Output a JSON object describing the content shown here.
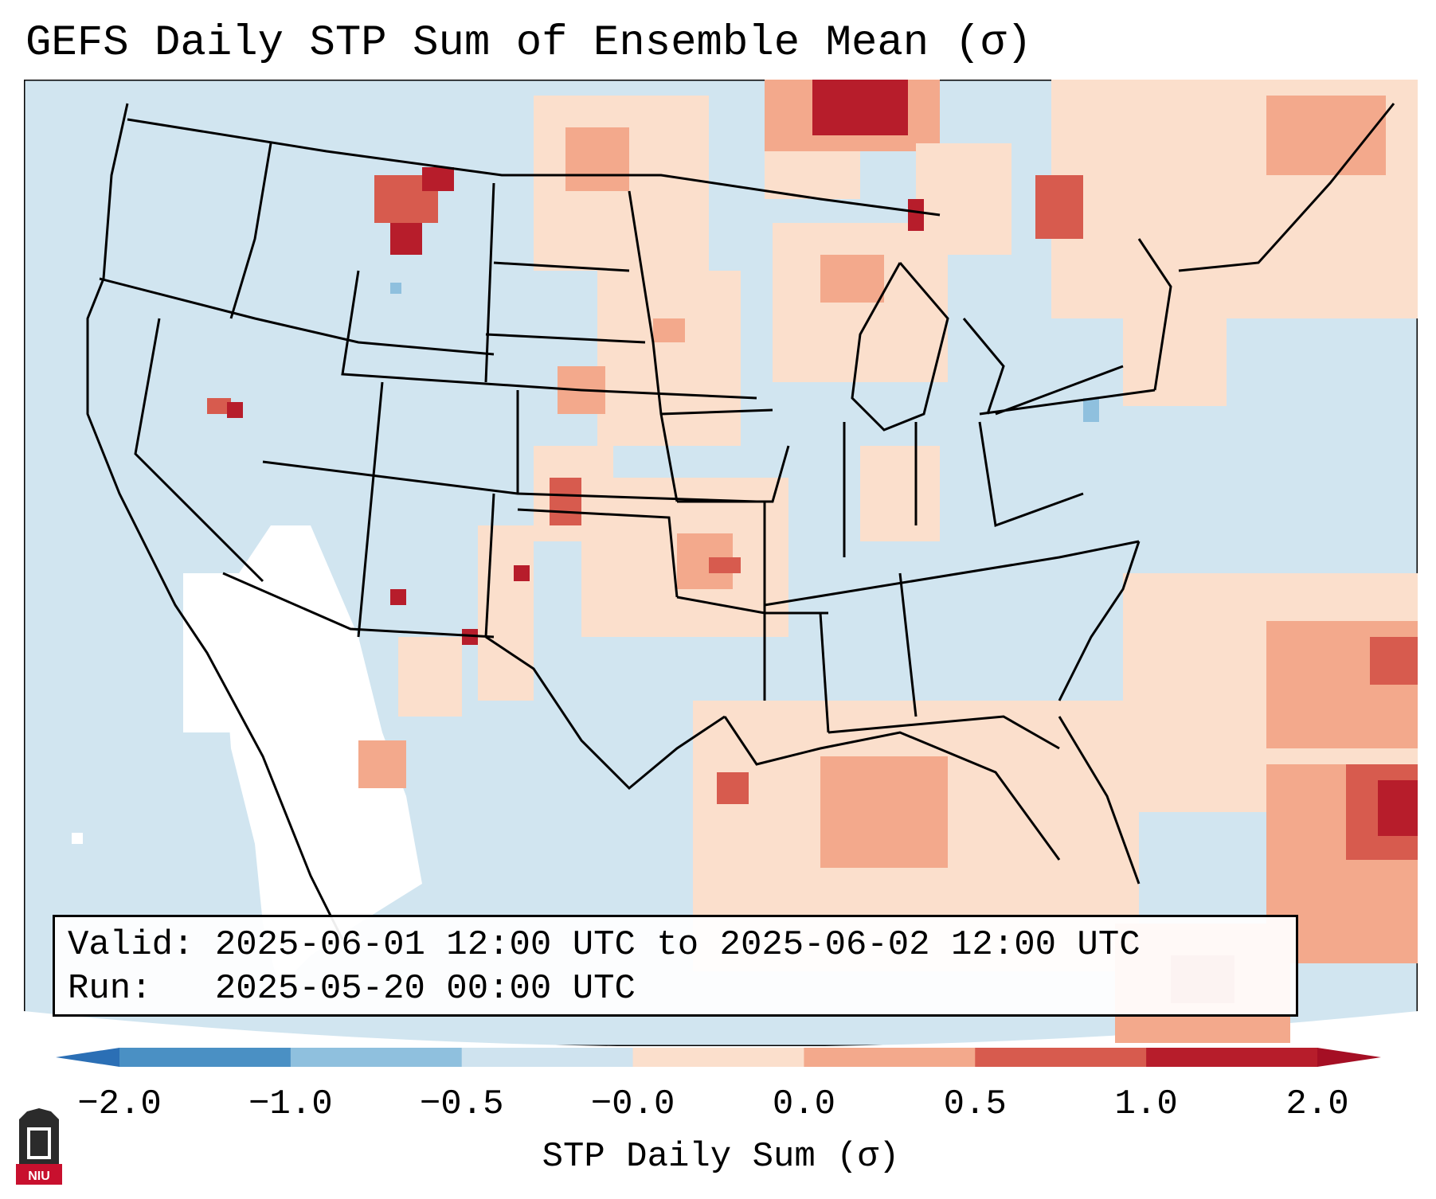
{
  "title": "GEFS Daily STP Sum of Ensemble Mean (σ)",
  "info": {
    "valid_label": "Valid:",
    "valid_value": "2025-06-01 12:00 UTC to 2025-06-02 12:00 UTC",
    "run_label": "Run:",
    "run_value": "2025-05-20 00:00 UTC"
  },
  "colorbar": {
    "title": "STP Daily Sum (σ)",
    "ticks": [
      "−2.0",
      "−1.0",
      "−0.5",
      "−0.0",
      "0.0",
      "0.5",
      "1.0",
      "2.0"
    ],
    "colors": [
      "#4a90c4",
      "#8fc0de",
      "#cfe3ef",
      "#fbdfcc",
      "#f3a98c",
      "#d75b4e",
      "#b71d2b"
    ],
    "extend_low_color": "#2b6fb5",
    "extend_high_color": "#a50f24"
  },
  "map": {
    "region": "Continental United States",
    "background_color": "#d1e5f0",
    "land_border_color": "#000000"
  },
  "logo": {
    "text": "NIU"
  }
}
